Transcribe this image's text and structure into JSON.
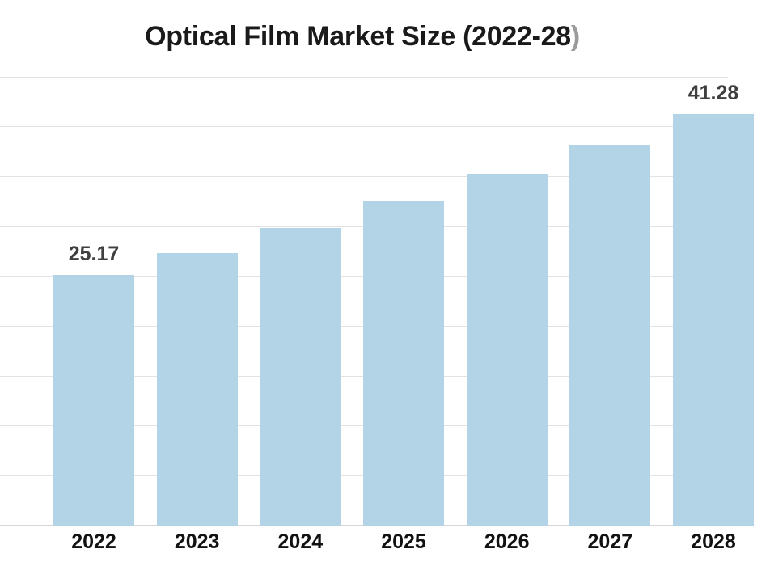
{
  "chart_data": {
    "type": "bar",
    "title": "Optical Film Market Size (2022-28)",
    "title_main": "Optical Film Market Size (2022-28",
    "title_suffix": ")",
    "categories": [
      "2022",
      "2023",
      "2024",
      "2025",
      "2026",
      "2027",
      "2028"
    ],
    "values": [
      25.17,
      27.3,
      29.8,
      32.5,
      35.3,
      38.2,
      41.28
    ],
    "labeled_points": [
      {
        "category": "2022",
        "label": "25.17"
      },
      {
        "category": "2028",
        "label": "41.28"
      }
    ],
    "xlabel": "",
    "ylabel": "",
    "ylim": [
      0,
      45
    ],
    "gridline_step": 5,
    "grid": true,
    "legend_position": "none",
    "y_tick_labels_visible": false,
    "colors": {
      "bar": "#b2d4e6",
      "title": "#1a1a1a",
      "title_suffix": "#9b9b9b",
      "value_label": "#3f3f3f",
      "axis_label": "#121212",
      "gridline": "#e2e2e2",
      "axis_line": "#d6d6d6",
      "background": "#ffffff"
    }
  }
}
